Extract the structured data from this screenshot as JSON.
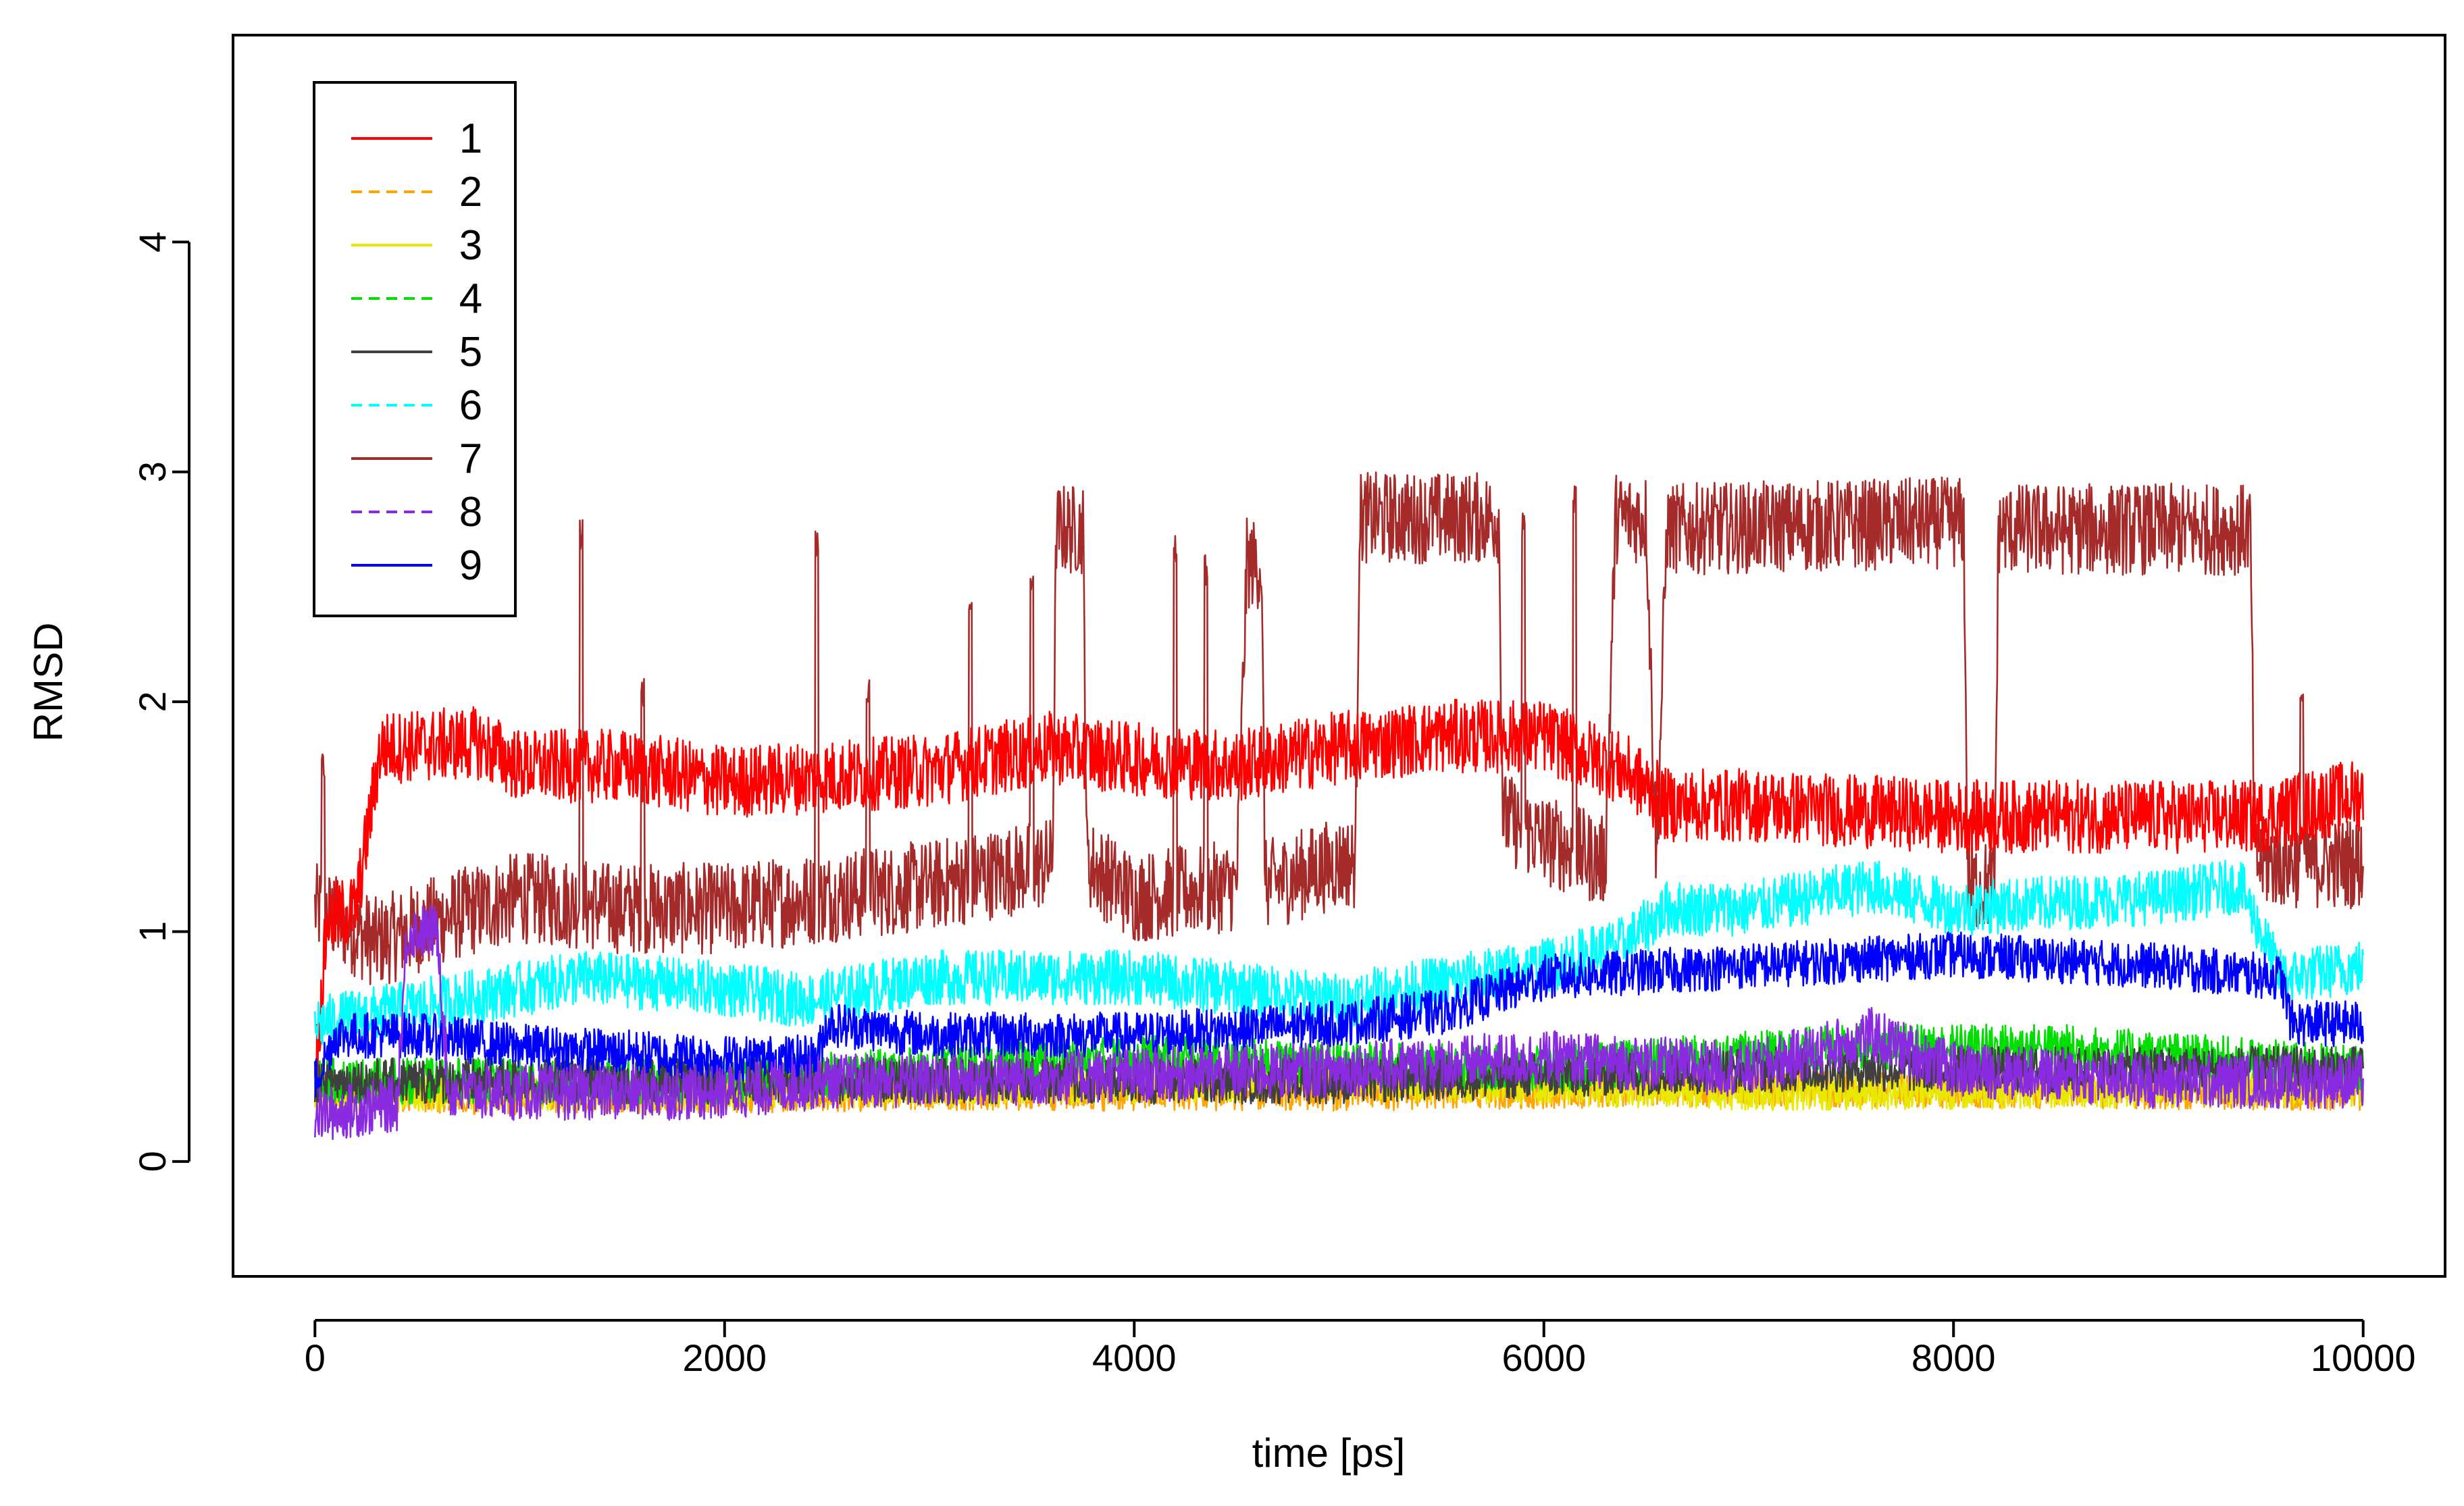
{
  "chart_data": {
    "type": "line",
    "title": "",
    "xlabel": "time [ps]",
    "ylabel": "RMSD",
    "xlim": [
      -400,
      10400
    ],
    "ylim": [
      -0.5,
      4.9
    ],
    "xticks": [
      0,
      2000,
      4000,
      6000,
      8000,
      10000
    ],
    "yticks": [
      0,
      1,
      2,
      3,
      4
    ],
    "xtick_labels": [
      "0",
      "2000",
      "4000",
      "6000",
      "8000",
      "10000"
    ],
    "ytick_labels": [
      "0",
      "1",
      "2",
      "3",
      "4"
    ],
    "grid": false,
    "legend_position": "top-left",
    "series": [
      {
        "name": "1",
        "color": "#FF0000",
        "dash": "solid",
        "noise": 0.16,
        "points": [
          [
            0,
            0.35
          ],
          [
            60,
            1.05
          ],
          [
            200,
            1.1
          ],
          [
            320,
            1.8
          ],
          [
            800,
            1.82
          ],
          [
            1000,
            1.72
          ],
          [
            1500,
            1.72
          ],
          [
            2000,
            1.65
          ],
          [
            3000,
            1.7
          ],
          [
            3600,
            1.8
          ],
          [
            4000,
            1.75
          ],
          [
            4500,
            1.72
          ],
          [
            5000,
            1.8
          ],
          [
            5500,
            1.85
          ],
          [
            6000,
            1.85
          ],
          [
            6400,
            1.7
          ],
          [
            6600,
            1.55
          ],
          [
            7000,
            1.55
          ],
          [
            8000,
            1.5
          ],
          [
            9000,
            1.5
          ],
          [
            9500,
            1.5
          ],
          [
            10000,
            1.6
          ]
        ]
      },
      {
        "name": "2",
        "color": "#FFA500",
        "dash": "dashed",
        "noise": 0.08,
        "points": [
          [
            0,
            0.3
          ],
          [
            1000,
            0.28
          ],
          [
            3000,
            0.3
          ],
          [
            5000,
            0.3
          ],
          [
            7000,
            0.32
          ],
          [
            10000,
            0.3
          ]
        ]
      },
      {
        "name": "3",
        "color": "#E8E800",
        "dash": "solid",
        "noise": 0.08,
        "points": [
          [
            0,
            0.3
          ],
          [
            2000,
            0.3
          ],
          [
            5000,
            0.35
          ],
          [
            7000,
            0.3
          ],
          [
            10000,
            0.32
          ]
        ]
      },
      {
        "name": "4",
        "color": "#00DD00",
        "dash": "dashed",
        "noise": 0.1,
        "points": [
          [
            0,
            0.35
          ],
          [
            2000,
            0.35
          ],
          [
            4000,
            0.45
          ],
          [
            6000,
            0.4
          ],
          [
            7500,
            0.5
          ],
          [
            8500,
            0.5
          ],
          [
            10000,
            0.4
          ]
        ]
      },
      {
        "name": "5",
        "color": "#404040",
        "dash": "solid",
        "noise": 0.1,
        "points": [
          [
            0,
            0.35
          ],
          [
            2000,
            0.35
          ],
          [
            5000,
            0.35
          ],
          [
            7000,
            0.4
          ],
          [
            10000,
            0.4
          ]
        ]
      },
      {
        "name": "6",
        "color": "#00FFFF",
        "dash": "dashed",
        "noise": 0.12,
        "points": [
          [
            0,
            0.6
          ],
          [
            1000,
            0.75
          ],
          [
            1300,
            0.8
          ],
          [
            2000,
            0.75
          ],
          [
            2400,
            0.7
          ],
          [
            3000,
            0.8
          ],
          [
            4000,
            0.8
          ],
          [
            5000,
            0.7
          ],
          [
            6000,
            0.85
          ],
          [
            6400,
            0.95
          ],
          [
            6600,
            1.1
          ],
          [
            7000,
            1.1
          ],
          [
            7600,
            1.2
          ],
          [
            8000,
            1.1
          ],
          [
            9000,
            1.15
          ],
          [
            9400,
            1.2
          ],
          [
            9600,
            0.8
          ],
          [
            10000,
            0.85
          ]
        ]
      },
      {
        "name": "7",
        "color": "#A52A2A",
        "dash": "solid",
        "noise": 0.2,
        "points": [
          [
            0,
            1.1
          ],
          [
            300,
            0.95
          ],
          [
            600,
            1.05
          ],
          [
            1000,
            1.15
          ],
          [
            1500,
            1.1
          ],
          [
            2000,
            1.1
          ],
          [
            2500,
            1.15
          ],
          [
            3000,
            1.2
          ],
          [
            3600,
            1.3
          ],
          [
            3620,
            2.75
          ],
          [
            3750,
            2.75
          ],
          [
            3770,
            1.3
          ],
          [
            4000,
            1.15
          ],
          [
            4500,
            1.2
          ],
          [
            4550,
            2.6
          ],
          [
            4620,
            2.6
          ],
          [
            4640,
            1.2
          ],
          [
            5000,
            1.3
          ],
          [
            5080,
            1.3
          ],
          [
            5100,
            2.8
          ],
          [
            5780,
            2.8
          ],
          [
            5800,
            1.5
          ],
          [
            6000,
            1.4
          ],
          [
            6300,
            1.3
          ],
          [
            6350,
            2.8
          ],
          [
            6500,
            2.8
          ],
          [
            6550,
            1.3
          ],
          [
            6600,
            2.75
          ],
          [
            8050,
            2.78
          ],
          [
            8070,
            1.2
          ],
          [
            8200,
            1.2
          ],
          [
            8220,
            2.75
          ],
          [
            9450,
            2.75
          ],
          [
            9470,
            1.3
          ],
          [
            10000,
            1.3
          ]
        ],
        "spikes": [
          [
            40,
            1.8
          ],
          [
            1300,
            2.8
          ],
          [
            1600,
            2.1
          ],
          [
            2450,
            2.75
          ],
          [
            2700,
            2.1
          ],
          [
            3200,
            2.5
          ],
          [
            3500,
            2.6
          ],
          [
            4200,
            2.75
          ],
          [
            4350,
            2.65
          ],
          [
            5900,
            2.85
          ],
          [
            6150,
            2.95
          ],
          [
            9700,
            2.1
          ]
        ]
      },
      {
        "name": "8",
        "color": "#8A2BE2",
        "dash": "dashed",
        "noise": 0.12,
        "points": [
          [
            0,
            0.2
          ],
          [
            400,
            0.25
          ],
          [
            450,
            1.0
          ],
          [
            600,
            1.0
          ],
          [
            650,
            0.3
          ],
          [
            2000,
            0.3
          ],
          [
            2500,
            0.35
          ],
          [
            3000,
            0.35
          ],
          [
            5000,
            0.4
          ],
          [
            6000,
            0.45
          ],
          [
            7000,
            0.4
          ],
          [
            7600,
            0.55
          ],
          [
            8000,
            0.4
          ],
          [
            9000,
            0.35
          ],
          [
            10000,
            0.35
          ]
        ]
      },
      {
        "name": "9",
        "color": "#0000FF",
        "dash": "solid",
        "noise": 0.1,
        "points": [
          [
            0,
            0.35
          ],
          [
            100,
            0.55
          ],
          [
            500,
            0.55
          ],
          [
            1000,
            0.5
          ],
          [
            2000,
            0.45
          ],
          [
            2450,
            0.45
          ],
          [
            2500,
            0.6
          ],
          [
            3000,
            0.55
          ],
          [
            4000,
            0.55
          ],
          [
            5000,
            0.6
          ],
          [
            5500,
            0.65
          ],
          [
            6000,
            0.8
          ],
          [
            7000,
            0.85
          ],
          [
            8000,
            0.9
          ],
          [
            9000,
            0.85
          ],
          [
            9600,
            0.8
          ],
          [
            9650,
            0.6
          ],
          [
            10000,
            0.6
          ]
        ]
      }
    ]
  }
}
